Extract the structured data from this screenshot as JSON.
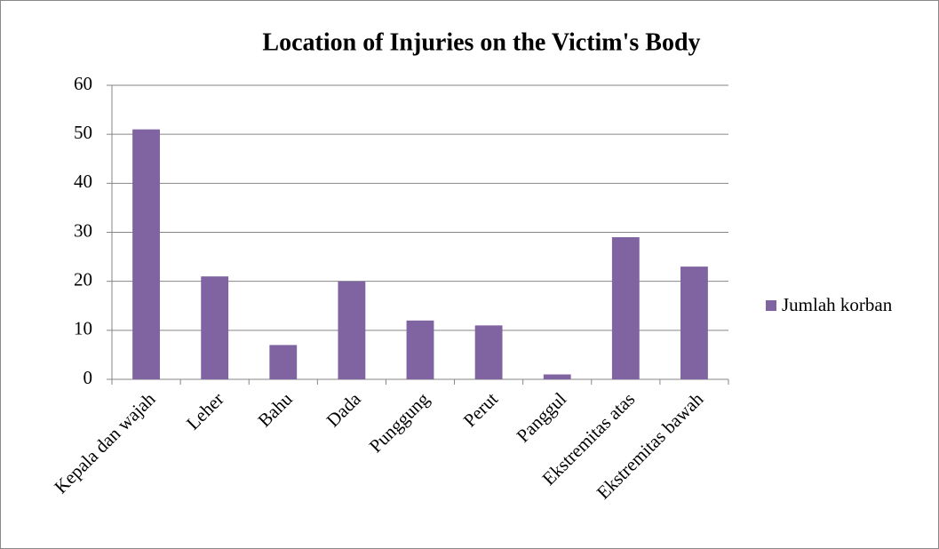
{
  "chart_data": {
    "type": "bar",
    "title": "Location of Injuries on the Victim's Body",
    "categories": [
      "Kepala dan wajah",
      "Leher",
      "Bahu",
      "Dada",
      "Punggung",
      "Perut",
      "Panggul",
      "Ekstremitas atas",
      "Ekstremitas bawah"
    ],
    "series": [
      {
        "name": "Jumlah korban",
        "color": "#8064a2",
        "values": [
          51,
          21,
          7,
          20,
          12,
          11,
          1,
          29,
          23
        ]
      }
    ],
    "ylim": [
      0,
      60
    ],
    "yticks": [
      0,
      10,
      20,
      30,
      40,
      50,
      60
    ],
    "grid": true,
    "legend": "right"
  }
}
